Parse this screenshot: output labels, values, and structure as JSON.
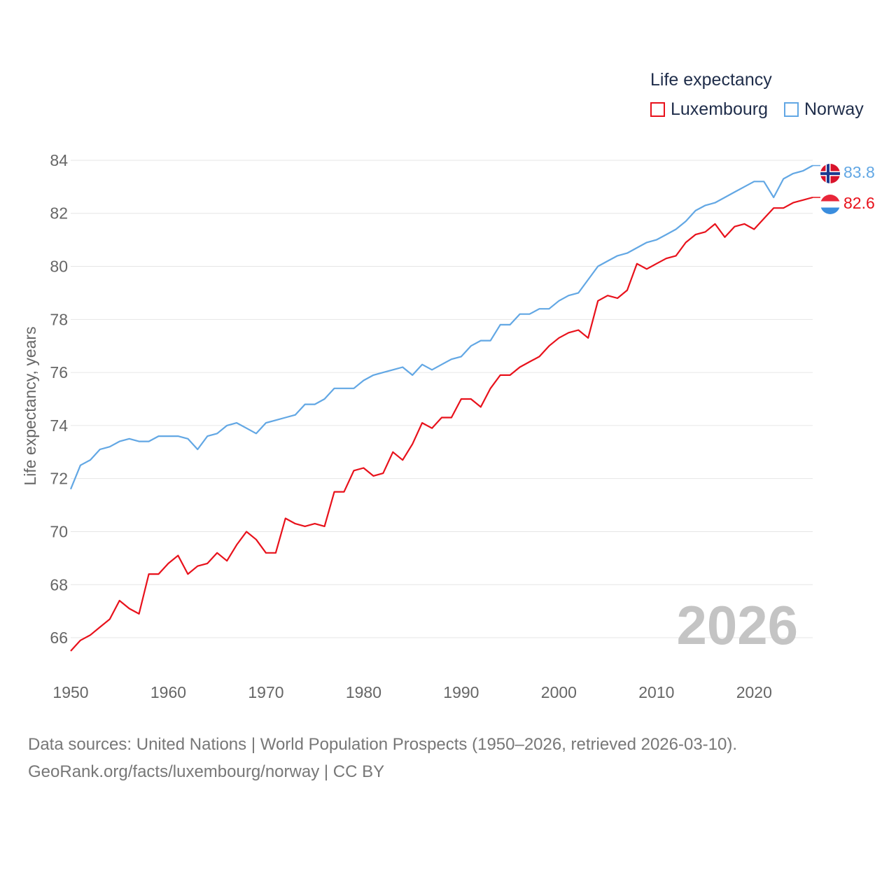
{
  "legend": {
    "title": "Life expectancy",
    "items": [
      {
        "label": "Luxembourg",
        "color": "#e8111b"
      },
      {
        "label": "Norway",
        "color": "#62a7e4"
      }
    ]
  },
  "current_year": "2026",
  "sources": {
    "line1": "Data sources: United Nations | World Population Prospects (1950–2026, retrieved 2026-03-10).",
    "line2": "GeoRank.org/facts/luxembourg/norway | CC BY"
  },
  "chart_data": {
    "type": "line",
    "title": "Life expectancy",
    "xlabel": "",
    "ylabel": "Life expectancy, years",
    "xlim": [
      1950,
      2026
    ],
    "ylim": [
      65.5,
      84.5
    ],
    "x_ticks": [
      1950,
      1960,
      1970,
      1980,
      1990,
      2000,
      2010,
      2020
    ],
    "y_ticks": [
      66,
      68,
      70,
      72,
      74,
      76,
      78,
      80,
      82,
      84
    ],
    "grid": true,
    "legend_position": "top-right",
    "x": [
      1950,
      1951,
      1952,
      1953,
      1954,
      1955,
      1956,
      1957,
      1958,
      1959,
      1960,
      1961,
      1962,
      1963,
      1964,
      1965,
      1966,
      1967,
      1968,
      1969,
      1970,
      1971,
      1972,
      1973,
      1974,
      1975,
      1976,
      1977,
      1978,
      1979,
      1980,
      1981,
      1982,
      1983,
      1984,
      1985,
      1986,
      1987,
      1988,
      1989,
      1990,
      1991,
      1992,
      1993,
      1994,
      1995,
      1996,
      1997,
      1998,
      1999,
      2000,
      2001,
      2002,
      2003,
      2004,
      2005,
      2006,
      2007,
      2008,
      2009,
      2010,
      2011,
      2012,
      2013,
      2014,
      2015,
      2016,
      2017,
      2018,
      2019,
      2020,
      2021,
      2022,
      2023,
      2024,
      2025,
      2026
    ],
    "series": [
      {
        "name": "Luxembourg",
        "color": "#e8111b",
        "end_label": "82.6",
        "values": [
          65.5,
          65.9,
          66.1,
          66.4,
          66.7,
          67.4,
          67.1,
          66.9,
          68.4,
          68.4,
          68.8,
          69.1,
          68.4,
          68.7,
          68.8,
          69.2,
          68.9,
          69.5,
          70.0,
          69.7,
          69.2,
          69.2,
          70.5,
          70.3,
          70.2,
          70.3,
          70.2,
          71.5,
          71.5,
          72.3,
          72.4,
          72.1,
          72.2,
          73.0,
          72.7,
          73.3,
          74.1,
          73.9,
          74.3,
          74.3,
          75.0,
          75.0,
          74.7,
          75.4,
          75.9,
          75.9,
          76.2,
          76.4,
          76.6,
          77.0,
          77.3,
          77.5,
          77.6,
          77.3,
          78.7,
          78.9,
          78.8,
          79.1,
          80.1,
          79.9,
          80.1,
          80.3,
          80.4,
          80.9,
          81.2,
          81.3,
          81.6,
          81.1,
          81.5,
          81.6,
          81.4,
          81.8,
          82.2,
          82.2,
          82.4,
          82.5,
          82.6
        ]
      },
      {
        "name": "Norway",
        "color": "#62a7e4",
        "end_label": "83.8",
        "values": [
          71.6,
          72.5,
          72.7,
          73.1,
          73.2,
          73.4,
          73.5,
          73.4,
          73.4,
          73.6,
          73.6,
          73.6,
          73.5,
          73.1,
          73.6,
          73.7,
          74.0,
          74.1,
          73.9,
          73.7,
          74.1,
          74.2,
          74.3,
          74.4,
          74.8,
          74.8,
          75.0,
          75.4,
          75.4,
          75.4,
          75.7,
          75.9,
          76.0,
          76.1,
          76.2,
          75.9,
          76.3,
          76.1,
          76.3,
          76.5,
          76.6,
          77.0,
          77.2,
          77.2,
          77.8,
          77.8,
          78.2,
          78.2,
          78.4,
          78.4,
          78.7,
          78.9,
          79.0,
          79.5,
          80.0,
          80.2,
          80.4,
          80.5,
          80.7,
          80.9,
          81.0,
          81.2,
          81.4,
          81.7,
          82.1,
          82.3,
          82.4,
          82.6,
          82.8,
          83.0,
          83.2,
          83.2,
          82.6,
          83.3,
          83.5,
          83.6,
          83.8
        ]
      }
    ]
  }
}
